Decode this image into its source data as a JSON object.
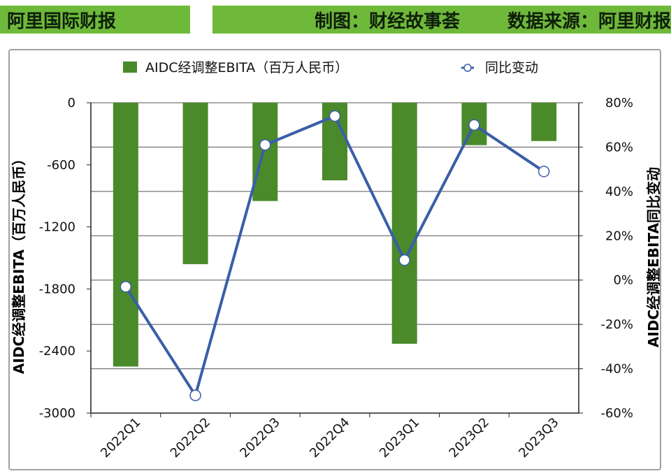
{
  "header": {
    "left": "阿里国际财报",
    "middle": "制图：财经故事荟",
    "right": "数据来源：阿里财报"
  },
  "colors": {
    "bar": "#4a8a2a",
    "line": "#3a5ea8",
    "banner": "#6fb93a"
  },
  "chart_data": {
    "type": "bar",
    "categories": [
      "2022Q1",
      "2022Q2",
      "2022Q3",
      "2022Q4",
      "2023Q1",
      "2023Q2",
      "2023Q3"
    ],
    "series": [
      {
        "name": "AIDC经调整EBITA（百万人民币）",
        "type": "bar",
        "axis": "left",
        "values": [
          -2550,
          -1560,
          -950,
          -750,
          -2330,
          -410,
          -370
        ]
      },
      {
        "name": "同比变动",
        "type": "line",
        "axis": "right",
        "unit": "%",
        "values": [
          -3,
          -52,
          61,
          74,
          9,
          70,
          49
        ]
      }
    ],
    "ylabel": "AIDC经调整EBITA（百万人民币）",
    "y2label": "AIDC经调整EBITA同比变动",
    "ylim": [
      -3000,
      0
    ],
    "y2lim": [
      -60,
      80
    ],
    "yticks": [
      "0",
      "-600",
      "-1200",
      "-1800",
      "-2400",
      "-3000"
    ],
    "y2ticks": [
      "80%",
      "60%",
      "40%",
      "20%",
      "0%",
      "-20%",
      "-40%",
      "-60%"
    ],
    "grid": true,
    "legend": "top"
  }
}
